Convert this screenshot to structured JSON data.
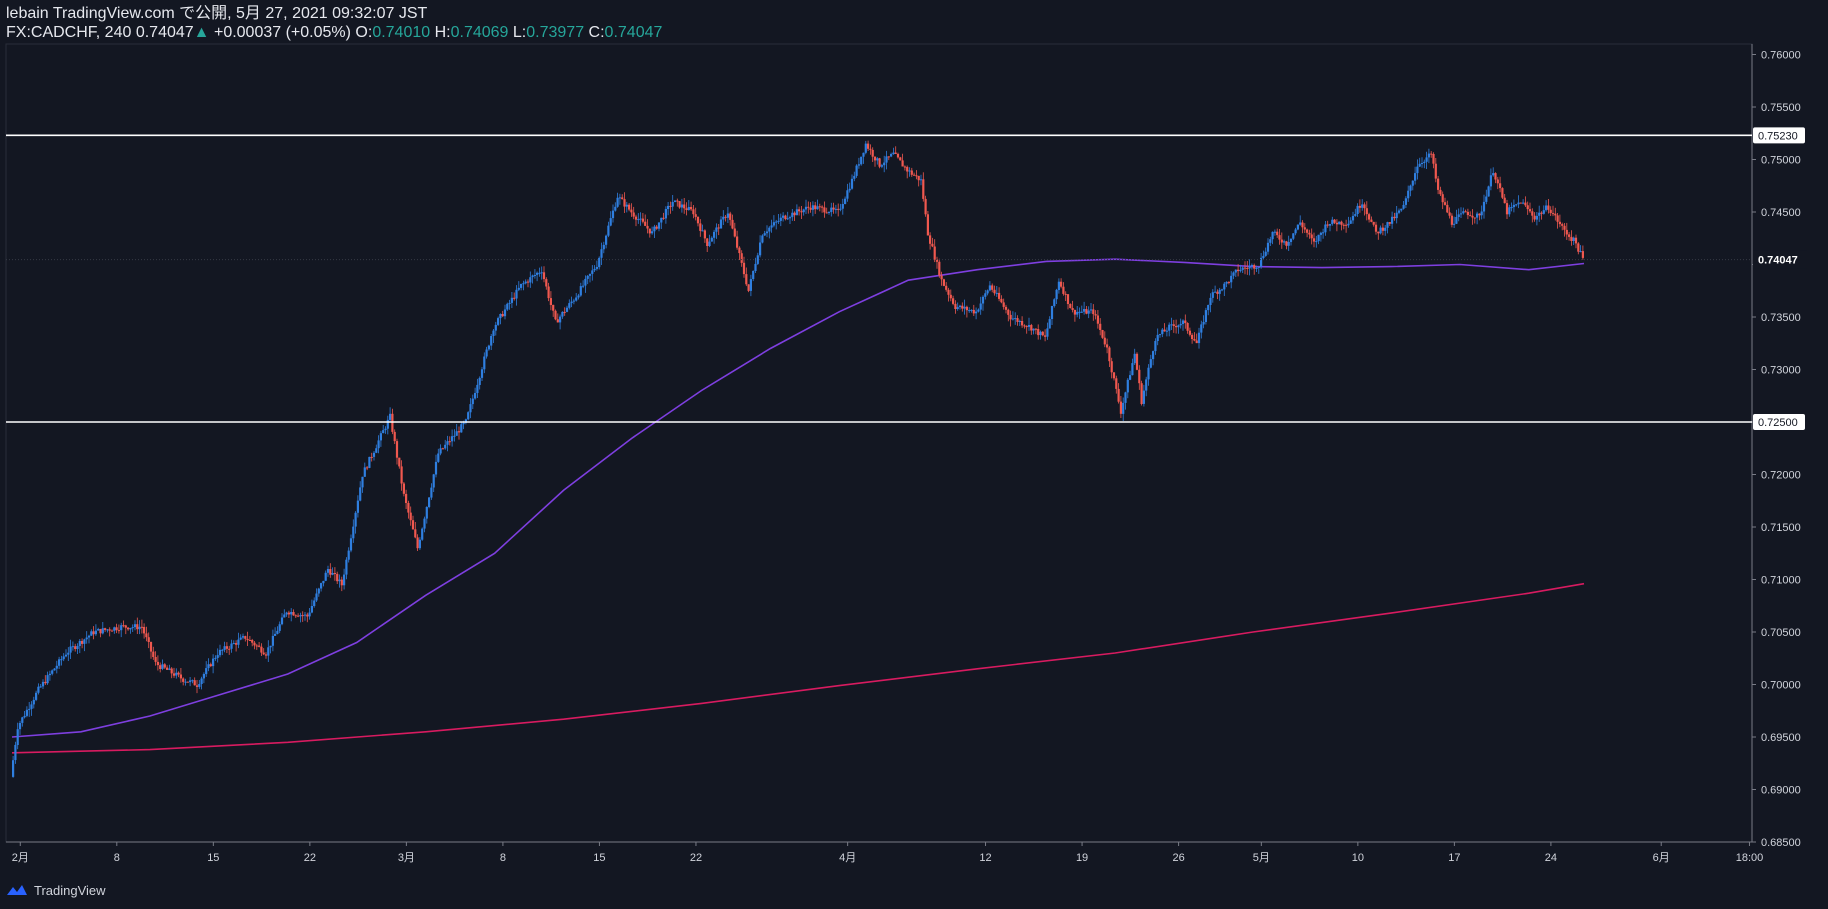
{
  "header": {
    "line1": "lebain TradingView.com で公開, 5月 27, 2021 09:32:07 JST",
    "symbol": "FX:CADCHF, 240",
    "last": "0.74047",
    "arrow": "▲",
    "change": "+0.00037 (+0.05%)",
    "o_label": "O:",
    "o": "0.74010",
    "h_label": "H:",
    "h": "0.74069",
    "l_label": "L:",
    "l": "0.73977",
    "c_label": "C:",
    "c": "0.74047"
  },
  "footer": {
    "brand": "TradingView",
    "logo_icon": "tradingview-logo-icon"
  },
  "colors": {
    "background": "#131722",
    "up": "#2f7fe0",
    "down": "#f0584f",
    "ma_short": "#7e3fe0",
    "ma_long": "#d81b60",
    "hline": "#ffffff",
    "axis_text": "#d1d4dc",
    "accent": "#26a69a"
  },
  "chart_data": {
    "type": "candlestick",
    "ylim": [
      0.685,
      0.761
    ],
    "y_ticks": [
      "0.76000",
      "0.75500",
      "0.75000",
      "0.74500",
      "0.74000",
      "0.73500",
      "0.73000",
      "0.72500",
      "0.72000",
      "0.71500",
      "0.71000",
      "0.70500",
      "0.70000",
      "0.69500",
      "0.69000",
      "0.68500"
    ],
    "x_range": [
      0,
      114
    ],
    "x_ticks": [
      {
        "day": 0.6,
        "label": "2月"
      },
      {
        "day": 7.6,
        "label": "8"
      },
      {
        "day": 14.6,
        "label": "15"
      },
      {
        "day": 21.6,
        "label": "22"
      },
      {
        "day": 28.6,
        "label": "3月"
      },
      {
        "day": 35.6,
        "label": "8"
      },
      {
        "day": 42.6,
        "label": "15"
      },
      {
        "day": 49.6,
        "label": "22"
      },
      {
        "day": 60.6,
        "label": "4月"
      },
      {
        "day": 70.6,
        "label": "12"
      },
      {
        "day": 77.6,
        "label": "19"
      },
      {
        "day": 84.6,
        "label": "26"
      },
      {
        "day": 90.6,
        "label": "5月"
      },
      {
        "day": 97.6,
        "label": "10"
      },
      {
        "day": 104.6,
        "label": "17"
      },
      {
        "day": 111.6,
        "label": "24"
      },
      {
        "day": 119.6,
        "label": "6月"
      },
      {
        "day": 126.0,
        "label": "18:00"
      }
    ],
    "horizontal_lines": [
      {
        "value": 0.7523,
        "label": "0.75230"
      },
      {
        "value": 0.725,
        "label": "0.72500"
      }
    ],
    "last_price": {
      "value": 0.74047,
      "label": "0.74047"
    },
    "path": [
      [
        0,
        0.6912
      ],
      [
        0.5,
        0.696
      ],
      [
        2,
        0.6995
      ],
      [
        4,
        0.703
      ],
      [
        6,
        0.705
      ],
      [
        8,
        0.7055
      ],
      [
        9.5,
        0.7055
      ],
      [
        10.5,
        0.702
      ],
      [
        12.5,
        0.7005
      ],
      [
        13.5,
        0.7
      ],
      [
        15,
        0.703
      ],
      [
        17,
        0.7045
      ],
      [
        18.5,
        0.703
      ],
      [
        20,
        0.707
      ],
      [
        21.5,
        0.7065
      ],
      [
        23,
        0.711
      ],
      [
        24,
        0.7095
      ],
      [
        25.5,
        0.72
      ],
      [
        27.5,
        0.7255
      ],
      [
        28.5,
        0.718
      ],
      [
        29.5,
        0.713
      ],
      [
        31,
        0.722
      ],
      [
        33,
        0.725
      ],
      [
        35,
        0.734
      ],
      [
        37,
        0.738
      ],
      [
        38.5,
        0.7395
      ],
      [
        39.5,
        0.7345
      ],
      [
        41,
        0.737
      ],
      [
        42.5,
        0.74
      ],
      [
        44,
        0.7465
      ],
      [
        45,
        0.745
      ],
      [
        46.5,
        0.743
      ],
      [
        48,
        0.746
      ],
      [
        49.5,
        0.745
      ],
      [
        50.5,
        0.742
      ],
      [
        52,
        0.745
      ],
      [
        53.5,
        0.7375
      ],
      [
        54.5,
        0.743
      ],
      [
        56,
        0.7445
      ],
      [
        58,
        0.7455
      ],
      [
        60,
        0.745
      ],
      [
        61,
        0.748
      ],
      [
        62,
        0.7515
      ],
      [
        63,
        0.7495
      ],
      [
        64,
        0.7505
      ],
      [
        65,
        0.749
      ],
      [
        66,
        0.748
      ],
      [
        66.5,
        0.743
      ],
      [
        67.5,
        0.7385
      ],
      [
        68.5,
        0.736
      ],
      [
        70,
        0.7355
      ],
      [
        71,
        0.738
      ],
      [
        72.5,
        0.735
      ],
      [
        74,
        0.734
      ],
      [
        75,
        0.733
      ],
      [
        76,
        0.7385
      ],
      [
        77,
        0.7355
      ],
      [
        78.5,
        0.7355
      ],
      [
        79.5,
        0.732
      ],
      [
        80.5,
        0.726
      ],
      [
        81.5,
        0.7315
      ],
      [
        82,
        0.727
      ],
      [
        83,
        0.733
      ],
      [
        84,
        0.734
      ],
      [
        85,
        0.7345
      ],
      [
        86,
        0.7325
      ],
      [
        87,
        0.737
      ],
      [
        88,
        0.738
      ],
      [
        89,
        0.7395
      ],
      [
        90.5,
        0.74
      ],
      [
        91.5,
        0.743
      ],
      [
        92.5,
        0.742
      ],
      [
        93.5,
        0.744
      ],
      [
        94.5,
        0.742
      ],
      [
        95.5,
        0.744
      ],
      [
        97,
        0.744
      ],
      [
        98,
        0.746
      ],
      [
        99,
        0.743
      ],
      [
        100,
        0.744
      ],
      [
        101,
        0.7455
      ],
      [
        102,
        0.7495
      ],
      [
        103,
        0.7505
      ],
      [
        103.5,
        0.747
      ],
      [
        104.5,
        0.744
      ],
      [
        105.5,
        0.745
      ],
      [
        106.5,
        0.7445
      ],
      [
        107.5,
        0.749
      ],
      [
        108.5,
        0.745
      ],
      [
        109.5,
        0.746
      ],
      [
        110.5,
        0.7445
      ],
      [
        111.5,
        0.7455
      ],
      [
        112.5,
        0.7435
      ],
      [
        113.5,
        0.742
      ],
      [
        114,
        0.7405
      ]
    ],
    "series": [
      {
        "type": "line",
        "points": [
          [
            0,
            0.695
          ],
          [
            5,
            0.6955
          ],
          [
            10,
            0.697
          ],
          [
            15,
            0.699
          ],
          [
            20,
            0.701
          ],
          [
            25,
            0.704
          ],
          [
            30,
            0.7085
          ],
          [
            35,
            0.7125
          ],
          [
            40,
            0.7185
          ],
          [
            45,
            0.7235
          ],
          [
            50,
            0.728
          ],
          [
            55,
            0.732
          ],
          [
            60,
            0.7355
          ],
          [
            65,
            0.7385
          ],
          [
            70,
            0.7395
          ],
          [
            75,
            0.7403
          ],
          [
            80,
            0.7405
          ],
          [
            85,
            0.7402
          ],
          [
            90,
            0.7398
          ],
          [
            95,
            0.7397
          ],
          [
            100,
            0.7398
          ],
          [
            105,
            0.74
          ],
          [
            110,
            0.7395
          ],
          [
            114,
            0.7401
          ]
        ]
      },
      {
        "type": "line",
        "points": [
          [
            0,
            0.6935
          ],
          [
            10,
            0.6938
          ],
          [
            20,
            0.6945
          ],
          [
            30,
            0.6955
          ],
          [
            40,
            0.6967
          ],
          [
            50,
            0.6982
          ],
          [
            60,
            0.6999
          ],
          [
            70,
            0.7015
          ],
          [
            80,
            0.703
          ],
          [
            90,
            0.705
          ],
          [
            100,
            0.7068
          ],
          [
            110,
            0.7087
          ],
          [
            114,
            0.7096
          ]
        ]
      }
    ]
  }
}
